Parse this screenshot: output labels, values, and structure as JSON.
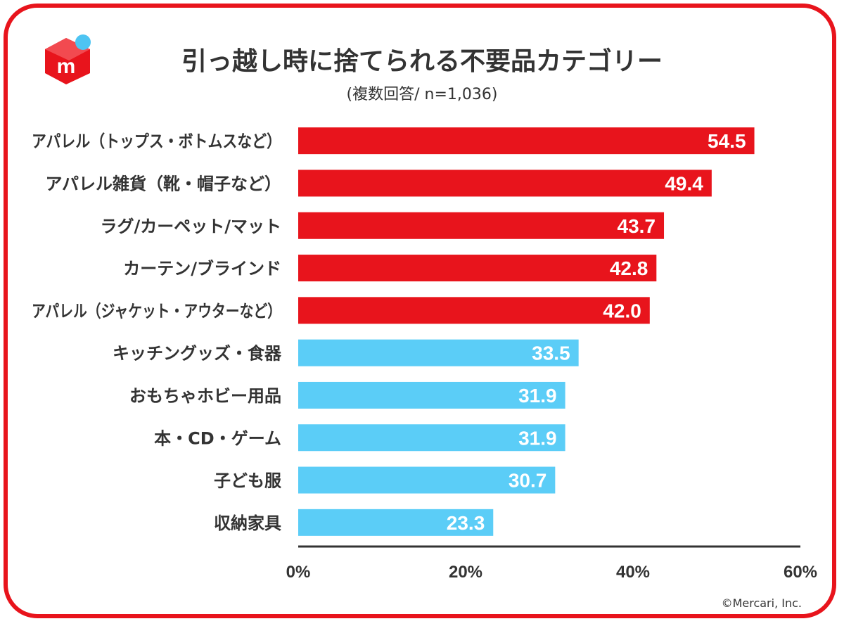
{
  "header": {
    "title": "引っ越し時に捨てられる不要品カテゴリー",
    "subtitle": "(複数回答/ n=1,036)"
  },
  "footer": {
    "copyright": "©Mercari, Inc."
  },
  "logo": {
    "icon": "mercari-m-icon",
    "brand_color": "#e8141c",
    "accent_color": "#4dc4f2",
    "letter": "m"
  },
  "colors": {
    "primary_bar": "#e8141c",
    "secondary_bar": "#5bcdf7",
    "frame": "#e8141c",
    "text": "#333333"
  },
  "chart_data": {
    "type": "bar",
    "orientation": "horizontal",
    "title": "引っ越し時に捨てられる不要品カテゴリー",
    "subtitle": "(複数回答/ n=1,036)",
    "categories": [
      "アパレル（トップス・ボトムスなど）",
      "アパレル雑貨（靴・帽子など）",
      "ラグ/カーペット/マット",
      "カーテン/ブラインド",
      "アパレル（ジャケット・アウターなど）",
      "キッチングッズ・食器",
      "おもちゃホビー用品",
      "本・CD・ゲーム",
      "子ども服",
      "収納家具"
    ],
    "values": [
      54.5,
      49.4,
      43.7,
      42.8,
      42.0,
      33.5,
      31.9,
      31.9,
      30.7,
      23.3
    ],
    "highlight_top_n": 5,
    "xlim": [
      0,
      60
    ],
    "xticks": [
      "0%",
      "20%",
      "40%",
      "60%"
    ],
    "grid": false,
    "data_labels": [
      "54.5",
      "49.4",
      "43.7",
      "42.8",
      "42.0",
      "33.5",
      "31.9",
      "31.9",
      "30.7",
      "23.3"
    ]
  }
}
